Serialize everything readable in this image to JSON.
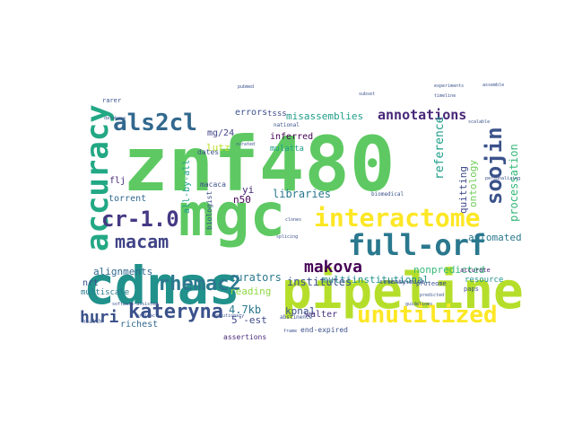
{
  "words": [
    {
      "text": "znf480",
      "color": "#5ec962"
    },
    {
      "text": "mgc",
      "color": "#5ec962"
    },
    {
      "text": "cdnas",
      "color": "#21918c"
    },
    {
      "text": "pipeline",
      "color": "#b5de2b"
    },
    {
      "text": "full-orf",
      "color": "#2a788e"
    },
    {
      "text": "interactome",
      "color": "#fde725"
    },
    {
      "text": "unutilized",
      "color": "#fde725"
    },
    {
      "text": "accuracy",
      "color": "#22a884"
    },
    {
      "text": "als2cl",
      "color": "#31688e"
    },
    {
      "text": "cr-1.0",
      "color": "#443983"
    },
    {
      "text": "macam",
      "color": "#414487"
    },
    {
      "text": "soojin",
      "color": "#3b528b"
    },
    {
      "text": "kateryna",
      "color": "#3b528b"
    },
    {
      "text": "rhemac2",
      "color": "#2a788e"
    },
    {
      "text": "huri",
      "color": "#3b528b"
    },
    {
      "text": "makova",
      "color": "#440154"
    },
    {
      "text": "annotations",
      "color": "#482878"
    },
    {
      "text": "misassemblies",
      "color": "#1f9e89"
    },
    {
      "text": "multiinstitutional",
      "color": "#21918c"
    },
    {
      "text": "reference",
      "color": "#1f9e89"
    },
    {
      "text": "quitting",
      "color": "#3e4989"
    },
    {
      "text": "ontology",
      "color": "#6ece58"
    },
    {
      "text": "processation",
      "color": "#35b779"
    },
    {
      "text": "automated",
      "color": "#2a788e"
    },
    {
      "text": "nonpredicted",
      "color": "#35b779"
    },
    {
      "text": "resource",
      "color": "#21918c"
    },
    {
      "text": "errors",
      "color": "#3b528b"
    },
    {
      "text": "tsss",
      "color": "#3e4989"
    },
    {
      "text": "mg/24",
      "color": "#414487"
    },
    {
      "text": "lutz",
      "color": "#bddf26"
    },
    {
      "text": "inferred",
      "color": "#440154"
    },
    {
      "text": "mulatta",
      "color": "#1f9e89"
    },
    {
      "text": "flj",
      "color": "#482878"
    },
    {
      "text": "all-by-all",
      "color": "#1f9e89"
    },
    {
      "text": "torrent",
      "color": "#31688e"
    },
    {
      "text": "n50",
      "color": "#440154"
    },
    {
      "text": "yi",
      "color": "#482878"
    },
    {
      "text": "libraries",
      "color": "#2a788e"
    },
    {
      "text": "alignments",
      "color": "#31688e"
    },
    {
      "text": "institutes",
      "color": "#3b528b"
    },
    {
      "text": "nrt",
      "color": "#3b528b"
    },
    {
      "text": "multiscale",
      "color": "#2a788e"
    },
    {
      "text": "curators",
      "color": "#2a788e"
    },
    {
      "text": "reading",
      "color": "#8fd744"
    },
    {
      "text": "4.7kb",
      "color": "#2a788e"
    },
    {
      "text": "5'-est",
      "color": "#3e4989"
    },
    {
      "text": "richest",
      "color": "#31688e"
    },
    {
      "text": "kpna1",
      "color": "#3b528b"
    },
    {
      "text": "walter",
      "color": "#46327e"
    },
    {
      "text": "assertions",
      "color": "#482878"
    },
    {
      "text": "end-expired",
      "color": "#3b528b"
    },
    {
      "text": "macaca",
      "color": "#3b528b"
    },
    {
      "text": "dates",
      "color": "#3b528b"
    },
    {
      "text": "biologist",
      "color": "#3b528b"
    },
    {
      "text": "seventy-nine",
      "color": "#3b528b"
    },
    {
      "text": "proteome",
      "color": "#3b528b"
    },
    {
      "text": "accurate",
      "color": "#482878"
    },
    {
      "text": "paps",
      "color": "#3b528b"
    },
    {
      "text": "rarer",
      "color": "#3b528b"
    },
    {
      "text": "health",
      "color": "#3b528b"
    },
    {
      "text": "abstinence",
      "color": "#3b528b"
    },
    {
      "text": "guidelines",
      "color": "#3b528b"
    },
    {
      "text": "frame",
      "color": "#3b528b"
    },
    {
      "text": "clones",
      "color": "#3b528b"
    },
    {
      "text": "national",
      "color": "#3b528b"
    },
    {
      "text": "pubmed",
      "color": "#3b528b"
    },
    {
      "text": "curated",
      "color": "#3b528b"
    },
    {
      "text": "subset",
      "color": "#3b528b"
    },
    {
      "text": "splicing",
      "color": "#3b528b"
    },
    {
      "text": "collection",
      "color": "#3b528b"
    },
    {
      "text": "biomedical",
      "color": "#3b528b"
    },
    {
      "text": "experiments",
      "color": "#3b528b"
    },
    {
      "text": "predicted",
      "color": "#3b528b"
    },
    {
      "text": "software-assisted",
      "color": "#3b528b"
    },
    {
      "text": "timeline",
      "color": "#3b528b"
    },
    {
      "text": "database",
      "color": "#3b528b"
    },
    {
      "text": "personalizing",
      "color": "#3b528b"
    },
    {
      "text": "assemble",
      "color": "#3b528b"
    },
    {
      "text": "scalable",
      "color": "#3b528b"
    },
    {
      "text": "artifact",
      "color": "#3b528b"
    },
    {
      "text": "evolutionary",
      "color": "#3b528b"
    }
  ]
}
